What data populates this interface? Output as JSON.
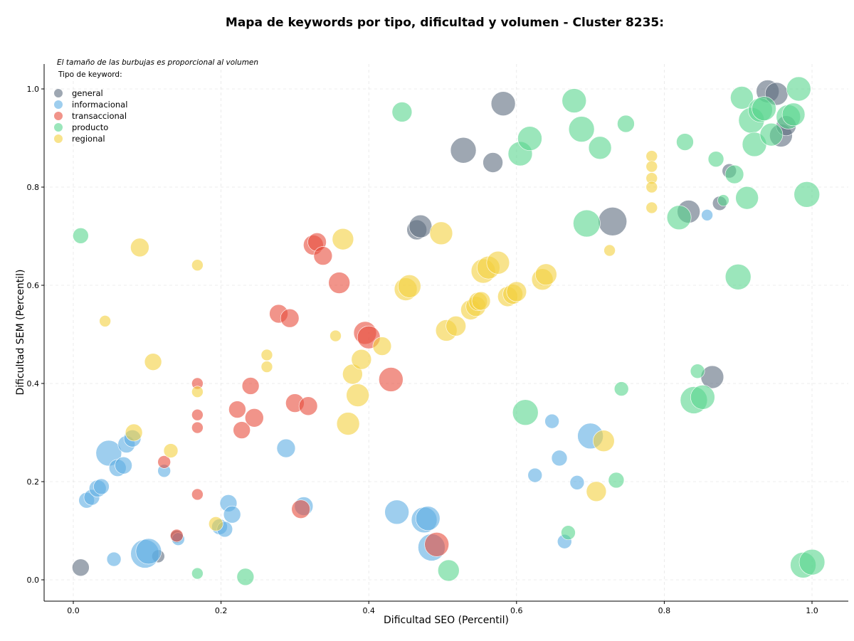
{
  "chart_data": {
    "type": "scatter",
    "title": "Mapa de keywords por tipo, dificultad y volumen - Cluster 8235:",
    "xlabel": "Dificultad SEO (Percentil)",
    "ylabel": "Dificultad SEM (Percentil)",
    "xlim": [
      -0.04,
      1.05
    ],
    "ylim": [
      -0.045,
      1.05
    ],
    "xticks": [
      0.0,
      0.2,
      0.4,
      0.6,
      0.8,
      1.0
    ],
    "yticks": [
      0.0,
      0.2,
      0.4,
      0.6,
      0.8,
      1.0
    ],
    "xtick_labels": [
      "0.0",
      "0.2",
      "0.4",
      "0.6",
      "0.8",
      "1.0"
    ],
    "ytick_labels": [
      "0.0",
      "0.2",
      "0.4",
      "0.6",
      "0.8",
      "1.0"
    ],
    "grid": true,
    "size_note": "El tamaño de las burbujas es proporcional al volumen",
    "legend_title": "Tipo de keyword:",
    "legend_position": "upper-left",
    "series": [
      {
        "name": "general",
        "color": "#5d6d7e",
        "points": [
          [
            0.01,
            0.025,
            12
          ],
          [
            0.115,
            0.048,
            9
          ],
          [
            0.14,
            0.088,
            9
          ],
          [
            0.465,
            0.713,
            14
          ],
          [
            0.47,
            0.72,
            16
          ],
          [
            0.528,
            0.875,
            18
          ],
          [
            0.568,
            0.85,
            14
          ],
          [
            0.582,
            0.97,
            17
          ],
          [
            0.73,
            0.73,
            20
          ],
          [
            0.833,
            0.75,
            16
          ],
          [
            0.865,
            0.413,
            16
          ],
          [
            0.875,
            0.767,
            10
          ],
          [
            0.888,
            0.833,
            10
          ],
          [
            0.94,
            0.995,
            16
          ],
          [
            0.952,
            0.99,
            16
          ],
          [
            0.958,
            0.905,
            16
          ],
          [
            0.965,
            0.925,
            14
          ]
        ]
      },
      {
        "name": "informacional",
        "color": "#5dade2",
        "points": [
          [
            0.018,
            0.162,
            11
          ],
          [
            0.025,
            0.168,
            11
          ],
          [
            0.033,
            0.186,
            12
          ],
          [
            0.038,
            0.19,
            11
          ],
          [
            0.048,
            0.258,
            18
          ],
          [
            0.055,
            0.042,
            10
          ],
          [
            0.06,
            0.228,
            12
          ],
          [
            0.068,
            0.233,
            12
          ],
          [
            0.072,
            0.276,
            12
          ],
          [
            0.08,
            0.288,
            12
          ],
          [
            0.097,
            0.053,
            20
          ],
          [
            0.102,
            0.058,
            18
          ],
          [
            0.123,
            0.222,
            9
          ],
          [
            0.142,
            0.083,
            9
          ],
          [
            0.198,
            0.108,
            11
          ],
          [
            0.205,
            0.103,
            11
          ],
          [
            0.21,
            0.156,
            12
          ],
          [
            0.215,
            0.133,
            12
          ],
          [
            0.288,
            0.268,
            13
          ],
          [
            0.312,
            0.15,
            13
          ],
          [
            0.438,
            0.138,
            17
          ],
          [
            0.475,
            0.122,
            18
          ],
          [
            0.48,
            0.125,
            17
          ],
          [
            0.485,
            0.066,
            19
          ],
          [
            0.625,
            0.213,
            10
          ],
          [
            0.648,
            0.323,
            10
          ],
          [
            0.658,
            0.248,
            11
          ],
          [
            0.665,
            0.078,
            10
          ],
          [
            0.682,
            0.198,
            10
          ],
          [
            0.7,
            0.293,
            18
          ],
          [
            0.858,
            0.743,
            8
          ]
        ]
      },
      {
        "name": "transaccional",
        "color": "#e74c3c",
        "points": [
          [
            0.123,
            0.24,
            9
          ],
          [
            0.14,
            0.09,
            9
          ],
          [
            0.168,
            0.174,
            8
          ],
          [
            0.168,
            0.31,
            8
          ],
          [
            0.168,
            0.336,
            8
          ],
          [
            0.168,
            0.4,
            8
          ],
          [
            0.222,
            0.347,
            12
          ],
          [
            0.228,
            0.305,
            12
          ],
          [
            0.24,
            0.395,
            12
          ],
          [
            0.245,
            0.33,
            13
          ],
          [
            0.278,
            0.542,
            13
          ],
          [
            0.293,
            0.533,
            13
          ],
          [
            0.3,
            0.36,
            13
          ],
          [
            0.308,
            0.144,
            13
          ],
          [
            0.318,
            0.354,
            13
          ],
          [
            0.325,
            0.682,
            14
          ],
          [
            0.33,
            0.688,
            13
          ],
          [
            0.338,
            0.66,
            13
          ],
          [
            0.36,
            0.605,
            15
          ],
          [
            0.395,
            0.503,
            16
          ],
          [
            0.4,
            0.494,
            16
          ],
          [
            0.43,
            0.408,
            17
          ],
          [
            0.492,
            0.072,
            17
          ]
        ]
      },
      {
        "name": "producto",
        "color": "#58d68d",
        "points": [
          [
            0.01,
            0.701,
            11
          ],
          [
            0.168,
            0.013,
            8
          ],
          [
            0.233,
            0.006,
            12
          ],
          [
            0.445,
            0.953,
            14
          ],
          [
            0.508,
            0.019,
            15
          ],
          [
            0.605,
            0.868,
            17
          ],
          [
            0.612,
            0.341,
            18
          ],
          [
            0.618,
            0.899,
            17
          ],
          [
            0.67,
            0.096,
            10
          ],
          [
            0.678,
            0.976,
            17
          ],
          [
            0.688,
            0.918,
            18
          ],
          [
            0.695,
            0.726,
            19
          ],
          [
            0.713,
            0.88,
            16
          ],
          [
            0.735,
            0.203,
            11
          ],
          [
            0.742,
            0.389,
            10
          ],
          [
            0.748,
            0.929,
            12
          ],
          [
            0.82,
            0.738,
            17
          ],
          [
            0.828,
            0.892,
            12
          ],
          [
            0.84,
            0.366,
            19
          ],
          [
            0.845,
            0.425,
            10
          ],
          [
            0.852,
            0.372,
            17
          ],
          [
            0.87,
            0.857,
            11
          ],
          [
            0.88,
            0.773,
            8
          ],
          [
            0.895,
            0.826,
            13
          ],
          [
            0.9,
            0.617,
            18
          ],
          [
            0.905,
            0.982,
            16
          ],
          [
            0.912,
            0.778,
            16
          ],
          [
            0.918,
            0.936,
            18
          ],
          [
            0.922,
            0.887,
            17
          ],
          [
            0.93,
            0.957,
            17
          ],
          [
            0.935,
            0.96,
            17
          ],
          [
            0.945,
            0.907,
            16
          ],
          [
            0.968,
            0.943,
            17
          ],
          [
            0.975,
            0.948,
            16
          ],
          [
            0.982,
            1.0,
            17
          ],
          [
            0.988,
            0.03,
            18
          ],
          [
            0.993,
            0.785,
            18
          ],
          [
            1.0,
            0.036,
            18
          ]
        ]
      },
      {
        "name": "regional",
        "color": "#f4d03f",
        "points": [
          [
            0.043,
            0.527,
            8
          ],
          [
            0.082,
            0.3,
            12
          ],
          [
            0.09,
            0.677,
            13
          ],
          [
            0.108,
            0.444,
            12
          ],
          [
            0.132,
            0.263,
            10
          ],
          [
            0.168,
            0.641,
            8
          ],
          [
            0.168,
            0.383,
            8
          ],
          [
            0.193,
            0.114,
            10
          ],
          [
            0.262,
            0.458,
            8
          ],
          [
            0.262,
            0.434,
            8
          ],
          [
            0.355,
            0.497,
            8
          ],
          [
            0.365,
            0.694,
            15
          ],
          [
            0.372,
            0.318,
            16
          ],
          [
            0.378,
            0.419,
            14
          ],
          [
            0.385,
            0.376,
            16
          ],
          [
            0.39,
            0.449,
            14
          ],
          [
            0.418,
            0.476,
            13
          ],
          [
            0.45,
            0.592,
            16
          ],
          [
            0.455,
            0.598,
            16
          ],
          [
            0.498,
            0.706,
            16
          ],
          [
            0.505,
            0.508,
            15
          ],
          [
            0.518,
            0.517,
            14
          ],
          [
            0.538,
            0.55,
            14
          ],
          [
            0.545,
            0.557,
            14
          ],
          [
            0.548,
            0.567,
            13
          ],
          [
            0.552,
            0.568,
            13
          ],
          [
            0.555,
            0.629,
            17
          ],
          [
            0.562,
            0.636,
            16
          ],
          [
            0.575,
            0.646,
            16
          ],
          [
            0.588,
            0.577,
            14
          ],
          [
            0.595,
            0.582,
            14
          ],
          [
            0.6,
            0.587,
            14
          ],
          [
            0.635,
            0.612,
            15
          ],
          [
            0.64,
            0.622,
            15
          ],
          [
            0.708,
            0.18,
            14
          ],
          [
            0.718,
            0.283,
            15
          ],
          [
            0.726,
            0.671,
            8
          ],
          [
            0.783,
            0.863,
            8
          ],
          [
            0.783,
            0.842,
            8
          ],
          [
            0.783,
            0.818,
            8
          ],
          [
            0.783,
            0.8,
            8
          ],
          [
            0.783,
            0.758,
            8
          ]
        ]
      }
    ]
  }
}
